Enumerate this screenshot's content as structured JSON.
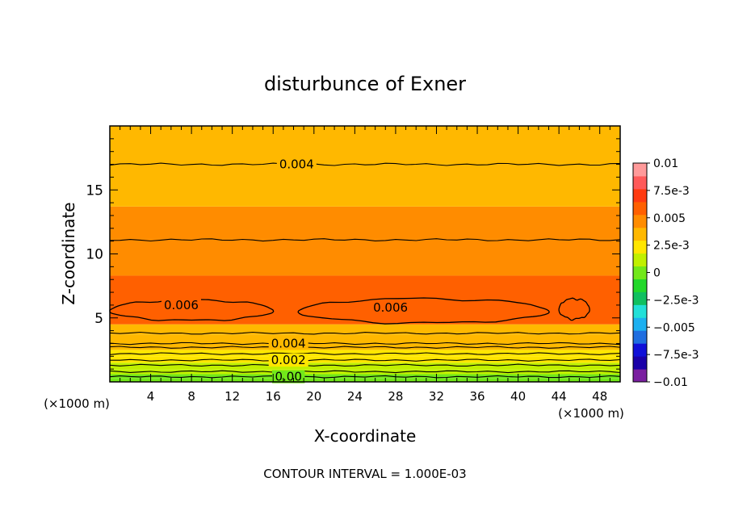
{
  "chart_data": {
    "type": "contour",
    "title": "disturbunce of Exner",
    "xlabel": "X-coordinate",
    "ylabel": "Z-coordinate",
    "x_unit_label": "(×1000 m)",
    "xlim": [
      0,
      50
    ],
    "ylim": [
      0,
      20
    ],
    "xticks": [
      4,
      8,
      12,
      16,
      20,
      24,
      28,
      32,
      36,
      40,
      44,
      48
    ],
    "yticks": [
      5,
      10,
      15
    ],
    "footer": "CONTOUR INTERVAL = 1.000E-03",
    "contour_interval": 0.001,
    "colorbar": {
      "range": [
        -0.01,
        0.01
      ],
      "labels": [
        {
          "value": 0.01,
          "text": "0.01"
        },
        {
          "value": 0.0075,
          "text": "7.5e-3"
        },
        {
          "value": 0.005,
          "text": "0.005"
        },
        {
          "value": 0.0025,
          "text": "2.5e-3"
        },
        {
          "value": 0,
          "text": "0"
        },
        {
          "value": -0.0025,
          "text": "−2.5e-3"
        },
        {
          "value": -0.005,
          "text": "−0.005"
        },
        {
          "value": -0.0075,
          "text": "−7.5e-3"
        },
        {
          "value": -0.01,
          "text": "−0.01"
        }
      ],
      "colors": [
        "#7a1fa0",
        "#1a00a8",
        "#1010d8",
        "#1f6ee0",
        "#1cb0f0",
        "#22e0d8",
        "#10c060",
        "#22d82a",
        "#72e81a",
        "#c0f000",
        "#ffe600",
        "#ffb800",
        "#ff8c00",
        "#ff6000",
        "#ff3a10",
        "#ff5a5a",
        "#ff9a9a"
      ]
    },
    "bands": [
      {
        "from": 0.0,
        "to": 0.3,
        "value": 0.0
      },
      {
        "from": 0.3,
        "to": 0.6,
        "value": 0.0005
      },
      {
        "from": 0.6,
        "to": 1.0,
        "value": 0.001
      },
      {
        "from": 1.0,
        "to": 1.5,
        "value": 0.0015
      },
      {
        "from": 1.5,
        "to": 2.0,
        "value": 0.002
      },
      {
        "from": 2.0,
        "to": 2.5,
        "value": 0.0025
      },
      {
        "from": 2.5,
        "to": 3.0,
        "value": 0.003
      },
      {
        "from": 3.0,
        "to": 3.7,
        "value": 0.0035
      },
      {
        "from": 3.7,
        "to": 4.5,
        "value": 0.004
      },
      {
        "from": 4.5,
        "to": 8.3,
        "value": 0.0055
      },
      {
        "from": 8.3,
        "to": 11.2,
        "value": 0.005
      },
      {
        "from": 11.2,
        "to": 13.7,
        "value": 0.0045
      },
      {
        "from": 13.7,
        "to": 17.0,
        "value": 0.004
      },
      {
        "from": 17.0,
        "to": 20.0,
        "value": 0.0035
      }
    ],
    "contours": [
      {
        "z": 0.4,
        "label": "0.00",
        "label_x": 17.5
      },
      {
        "z": 0.8
      },
      {
        "z": 1.3
      },
      {
        "z": 1.7,
        "label": "0.002",
        "label_x": 17.5
      },
      {
        "z": 2.2
      },
      {
        "z": 2.7
      },
      {
        "z": 3.0,
        "label": "0.004",
        "label_x": 17.5
      },
      {
        "z": 3.8
      },
      {
        "z": 11.1
      },
      {
        "z": 17.0,
        "label": "0.004",
        "label_x": 18.3
      }
    ],
    "maxima_regions": [
      {
        "value": 0.006,
        "x": [
          0.0,
          16.0
        ],
        "z": [
          4.8,
          6.4
        ],
        "label": "0.006",
        "label_x": 7.0,
        "label_z": 6.0
      },
      {
        "value": 0.006,
        "x": [
          18.5,
          43.0
        ],
        "z": [
          4.6,
          6.5
        ],
        "label": "0.006",
        "label_x": 27.5,
        "label_z": 5.8
      },
      {
        "value": 0.006,
        "x": [
          44.0,
          47.0
        ],
        "z": [
          4.9,
          6.5
        ]
      }
    ]
  }
}
